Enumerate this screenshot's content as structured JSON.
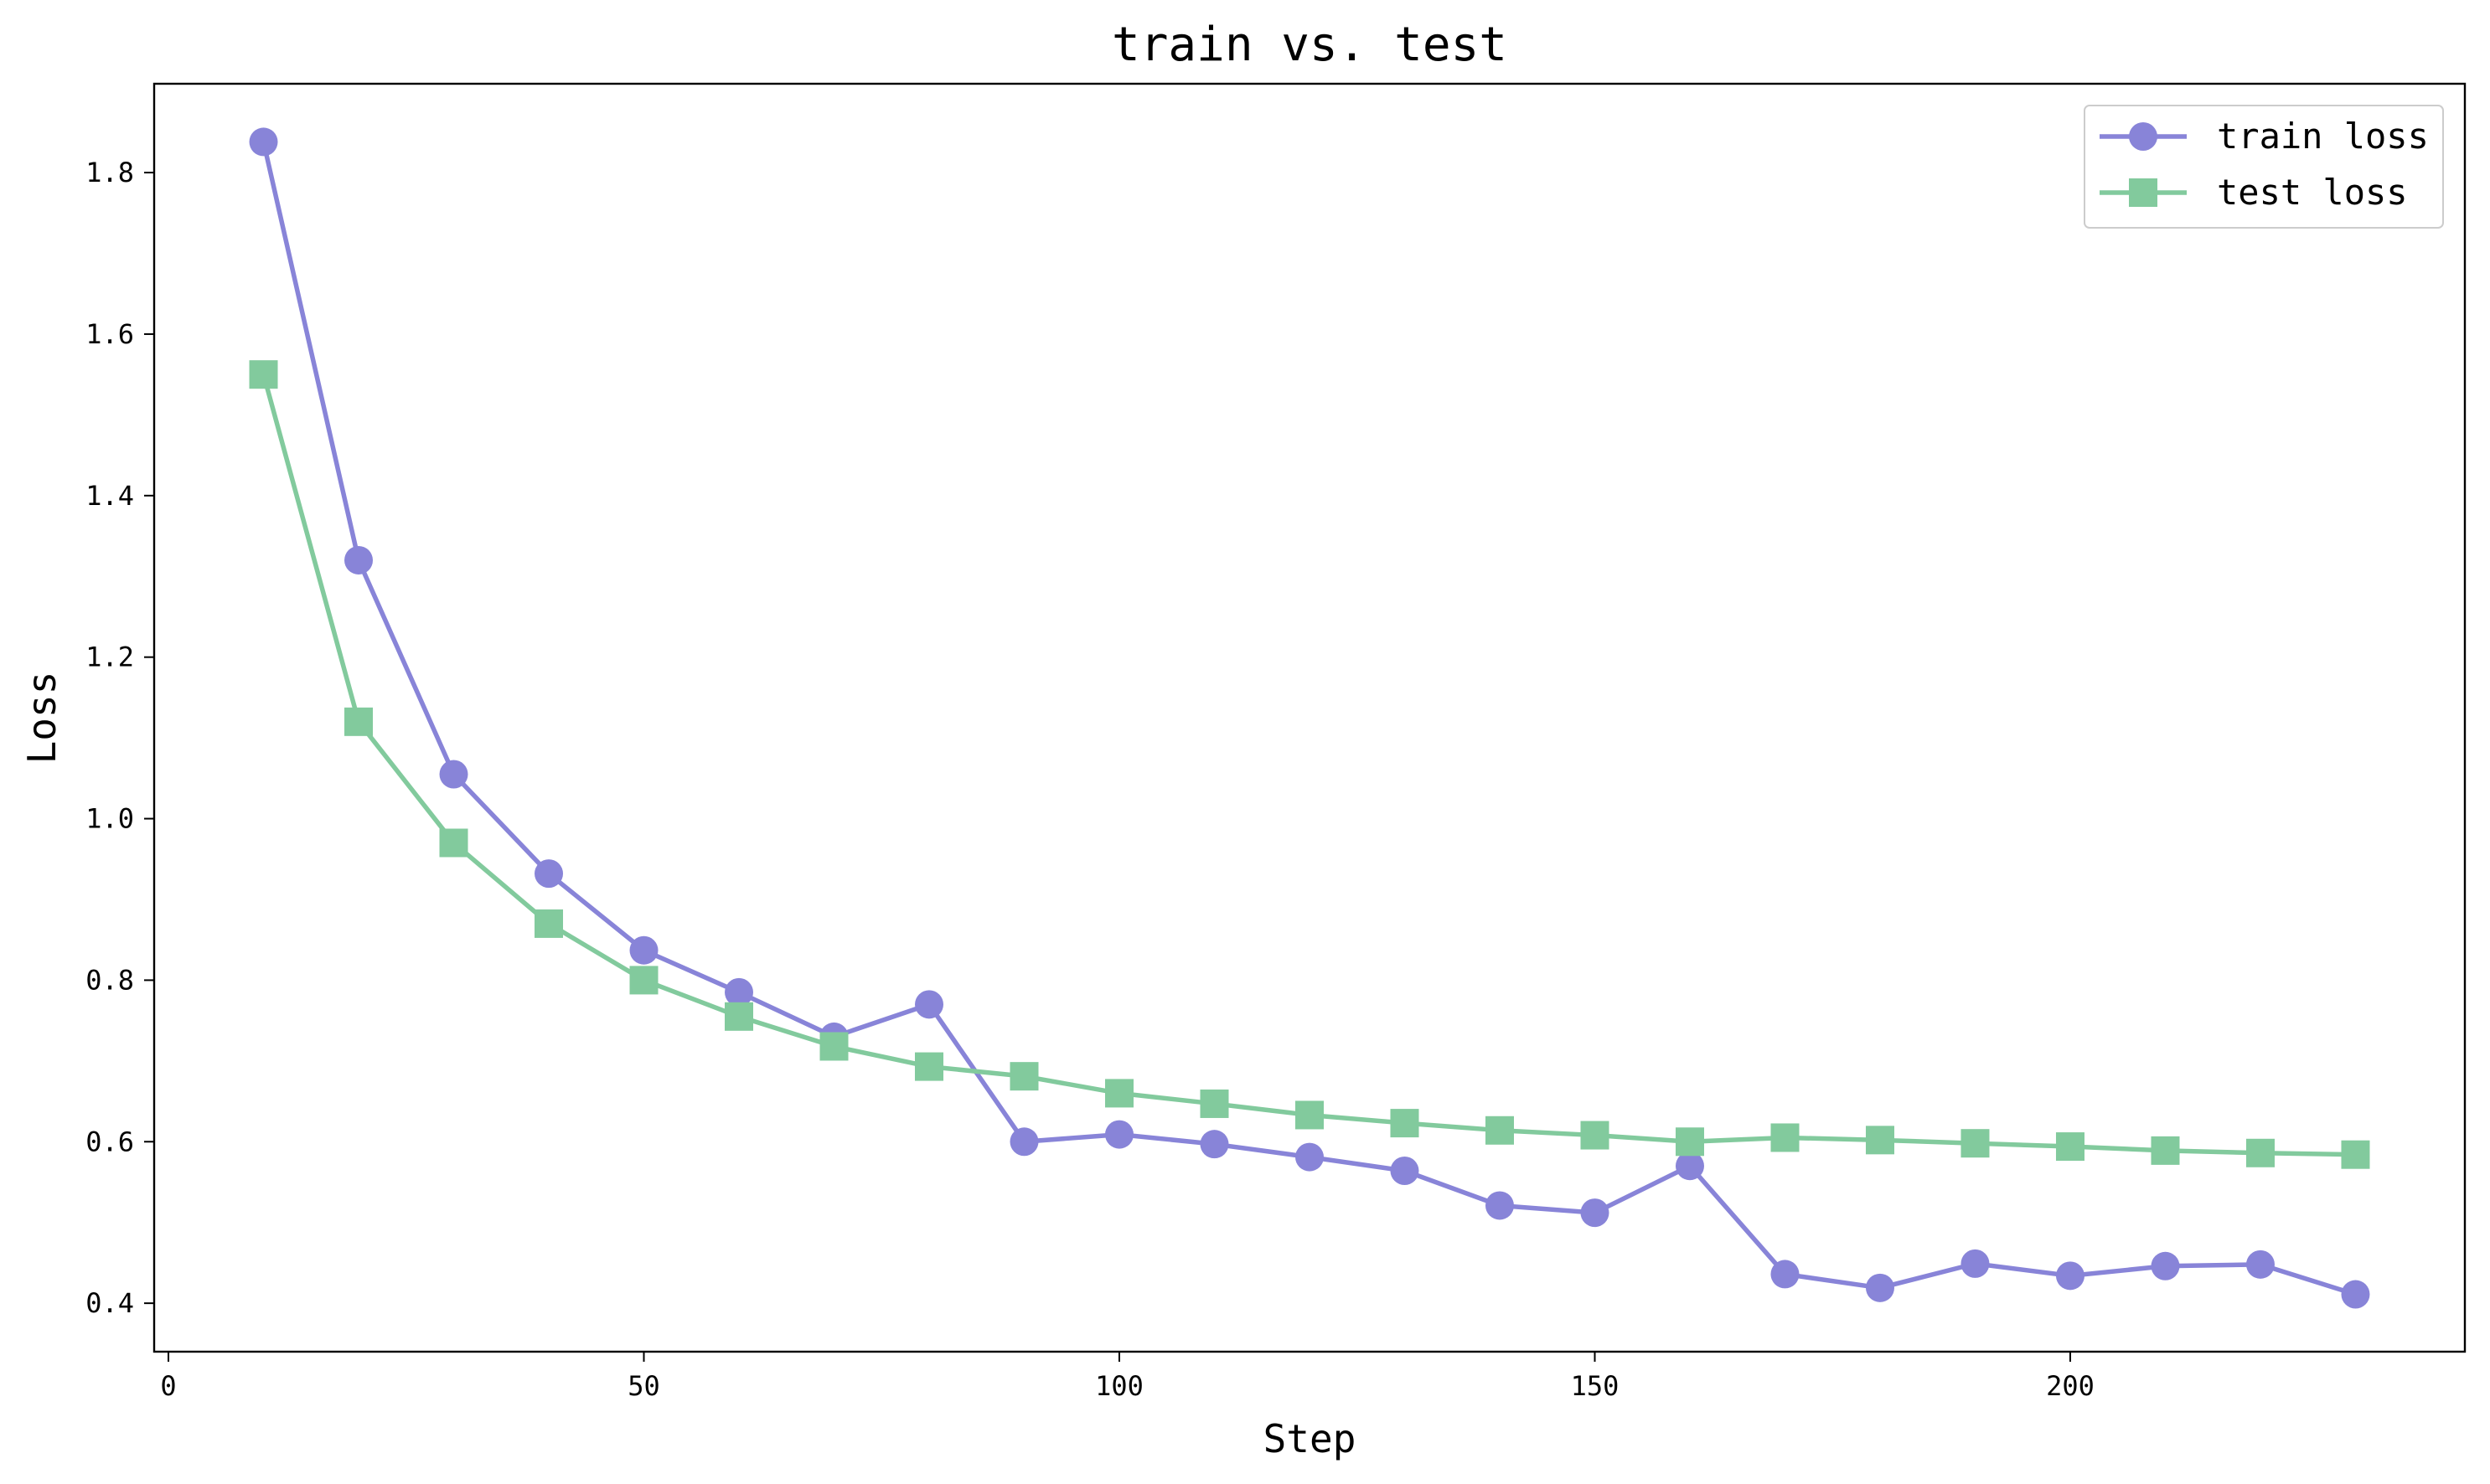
{
  "chart_data": {
    "type": "line",
    "title": "train vs. test",
    "xlabel": "Step",
    "ylabel": "Loss",
    "xlim": [
      -1.5,
      241.5
    ],
    "ylim": [
      0.34,
      1.91
    ],
    "xticks": [
      0,
      50,
      100,
      150,
      200
    ],
    "yticks": [
      0.4,
      0.6,
      0.8,
      1.0,
      1.2,
      1.4,
      1.6,
      1.8
    ],
    "ytick_labels": [
      "0.4",
      "0.6",
      "0.8",
      "1.0",
      "1.2",
      "1.4",
      "1.6",
      "1.8"
    ],
    "x": [
      10,
      20,
      30,
      40,
      50,
      60,
      70,
      80,
      90,
      100,
      110,
      120,
      130,
      140,
      150,
      160,
      170,
      180,
      190,
      200,
      210,
      220,
      230
    ],
    "series": [
      {
        "name": "train loss",
        "marker": "circle",
        "color": "#8884d8",
        "values": [
          1.838,
          1.32,
          1.055,
          0.932,
          0.837,
          0.785,
          0.73,
          0.77,
          0.6,
          0.609,
          0.597,
          0.581,
          0.564,
          0.521,
          0.512,
          0.57,
          0.436,
          0.419,
          0.449,
          0.434,
          0.446,
          0.448,
          0.411
        ]
      },
      {
        "name": "test loss",
        "marker": "square",
        "color": "#82ca9d",
        "values": [
          1.55,
          1.12,
          0.97,
          0.87,
          0.8,
          0.755,
          0.718,
          0.693,
          0.681,
          0.66,
          0.647,
          0.633,
          0.623,
          0.614,
          0.608,
          0.6,
          0.605,
          0.602,
          0.598,
          0.594,
          0.589,
          0.586,
          0.584
        ]
      }
    ],
    "grid": false,
    "legend_position": "top-right"
  }
}
